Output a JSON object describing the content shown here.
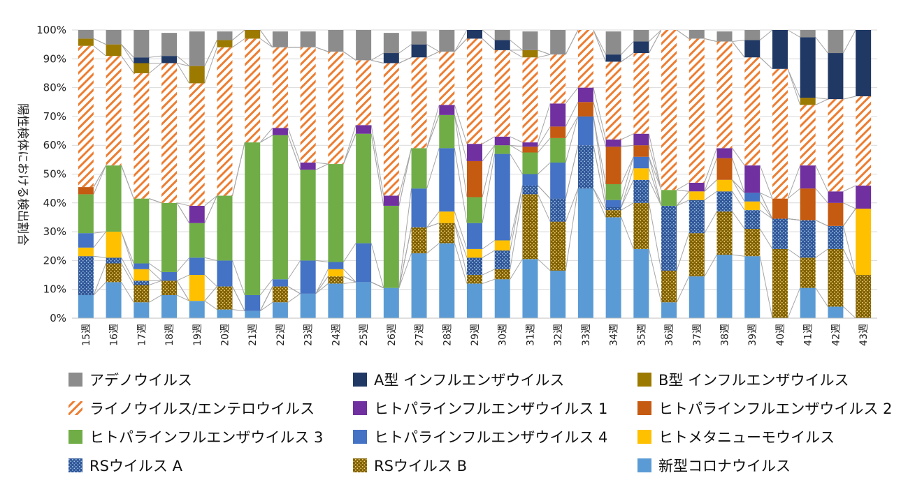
{
  "chart_data": {
    "type": "bar",
    "stacked": true,
    "percent": true,
    "ylabel": "陽性検体における検出割合",
    "ylim": [
      0,
      100
    ],
    "yticks": [
      "0%",
      "10%",
      "20%",
      "30%",
      "40%",
      "50%",
      "60%",
      "70%",
      "80%",
      "90%",
      "100%"
    ],
    "grid": true,
    "legend_position": "bottom",
    "categories": [
      "15週",
      "16週",
      "17週",
      "18週",
      "19週",
      "20週",
      "21週",
      "22週",
      "23週",
      "24週",
      "25週",
      "26週",
      "27週",
      "28週",
      "29週",
      "30週",
      "31週",
      "32週",
      "33週",
      "34週",
      "35週",
      "36週",
      "37週",
      "38週",
      "39週",
      "40週",
      "41週",
      "42週",
      "43週"
    ],
    "series": [
      {
        "name": "新型コロナウイルス",
        "color": "#5b9bd5",
        "pattern": "solid",
        "values": [
          8,
          12.5,
          5.5,
          8,
          6,
          3,
          2.5,
          5.5,
          8.5,
          12,
          12.5,
          10.5,
          22.5,
          26,
          12,
          13.5,
          20.5,
          16.5,
          45,
          35,
          24,
          5.5,
          14.5,
          22,
          21.5,
          0,
          10.5,
          4,
          0
        ]
      },
      {
        "name": "RSウイルス B",
        "color": "#7f6000",
        "pattern": "dots",
        "values": [
          0,
          6.5,
          6,
          5,
          0,
          8,
          0,
          5.5,
          0,
          2.5,
          0,
          0,
          9,
          7,
          3,
          3.5,
          22.5,
          17,
          0,
          2.5,
          16,
          11,
          15,
          15,
          9.5,
          24,
          10.5,
          20,
          15
        ]
      },
      {
        "name": "RSウイルス A",
        "color": "#2f5597",
        "pattern": "dots",
        "values": [
          13.5,
          2,
          1.5,
          0,
          0,
          0,
          0,
          0,
          0,
          0,
          0,
          0,
          0,
          0,
          6,
          6.5,
          3,
          8,
          15,
          1,
          8,
          22.5,
          11.5,
          7,
          6.5,
          10.5,
          13,
          8,
          0
        ]
      },
      {
        "name": "ヒトメタニューモウイルス",
        "color": "#ffc000",
        "pattern": "solid",
        "values": [
          3,
          9,
          4,
          0,
          9,
          0,
          0,
          0,
          0,
          2.5,
          0,
          0,
          0,
          4,
          3,
          3.5,
          0,
          0,
          0,
          0,
          4,
          0,
          3,
          4,
          3,
          0,
          0,
          0,
          23
        ]
      },
      {
        "name": "ヒトパラインフルエンザウイルス 4",
        "color": "#4472c4",
        "pattern": "solid",
        "values": [
          5,
          0,
          2,
          3,
          6,
          9,
          5.5,
          2.5,
          11.5,
          2.5,
          13.5,
          0,
          13.5,
          22,
          9,
          30,
          4,
          12.5,
          10,
          2.5,
          4,
          0,
          0,
          0,
          3,
          0,
          0,
          0,
          0
        ]
      },
      {
        "name": "ヒトパラインフルエンザウイルス 3",
        "color": "#70ad47",
        "pattern": "solid",
        "values": [
          13.5,
          23,
          22.5,
          24,
          12,
          22.5,
          53,
          50,
          31.5,
          34,
          38,
          28.5,
          14,
          11.5,
          9,
          3,
          7.5,
          8.5,
          0,
          5.5,
          0,
          5.5,
          0,
          0,
          0,
          0,
          0,
          0,
          0
        ]
      },
      {
        "name": "ヒトパラインフルエンザウイルス 2",
        "color": "#c55a11",
        "pattern": "solid",
        "values": [
          2.5,
          0,
          0,
          0,
          0,
          0,
          0,
          0,
          0,
          0,
          0,
          0,
          0,
          0,
          12.5,
          0,
          2,
          4,
          5,
          13,
          4,
          0,
          0,
          7.5,
          0,
          7,
          11,
          8,
          0
        ]
      },
      {
        "name": "ヒトパラインフルエンザウイルス 1",
        "color": "#7030a0",
        "pattern": "solid",
        "values": [
          0,
          0,
          0,
          0,
          6,
          0,
          0,
          2.5,
          2.5,
          0,
          3,
          3.5,
          0,
          3.5,
          6,
          3,
          1.5,
          8,
          5,
          2.5,
          4,
          0,
          3,
          3.5,
          9.5,
          0,
          8,
          4,
          8
        ]
      },
      {
        "name": "ライノウイルス/エンテロウイルス",
        "color": "#ed7d31",
        "pattern": "hatch",
        "values": [
          49,
          38,
          43.5,
          48.5,
          42.5,
          51.5,
          36,
          28,
          40,
          39,
          22.5,
          46,
          31.5,
          18.5,
          36.5,
          30,
          29.5,
          17,
          20,
          27,
          28,
          55.5,
          50,
          37,
          37.5,
          45,
          21,
          32,
          31
        ]
      },
      {
        "name": "B型 インフルエンザウイルス",
        "color": "#9c7a00",
        "pattern": "solid",
        "values": [
          2.5,
          4,
          3.5,
          0,
          6,
          2.5,
          3,
          0,
          0,
          0,
          0,
          0,
          0,
          0,
          0,
          0,
          2.5,
          0,
          0,
          0,
          0,
          0,
          0,
          0,
          0,
          0,
          2.5,
          0,
          0
        ]
      },
      {
        "name": "A型 インフルエンザウイルス",
        "color": "#203864",
        "pattern": "solid",
        "values": [
          0,
          0,
          2,
          2.5,
          0,
          0,
          0,
          0,
          0,
          0,
          0,
          3.5,
          4.5,
          0,
          3,
          3.5,
          0,
          0,
          0,
          2.5,
          4,
          0,
          0,
          0,
          6,
          14,
          21,
          16,
          23
        ]
      },
      {
        "name": "アデノウイルス",
        "color": "#8c8c8c",
        "pattern": "solid",
        "values": [
          3,
          5,
          9.5,
          8,
          12,
          3,
          0,
          5.5,
          5.5,
          7.5,
          10.5,
          7,
          4.5,
          7.5,
          3,
          3.5,
          6.5,
          8.5,
          0,
          8,
          4,
          0,
          3,
          3.5,
          3.5,
          0,
          2.5,
          8,
          0
        ]
      }
    ],
    "legend": {
      "columns": 3,
      "order": [
        "アデノウイルス",
        "A型 インフルエンザウイルス",
        "B型 インフルエンザウイルス",
        "ライノウイルス/エンテロウイルス",
        "ヒトパラインフルエンザウイルス 1",
        "ヒトパラインフルエンザウイルス 2",
        "ヒトパラインフルエンザウイルス 3",
        "ヒトパラインフルエンザウイルス 4",
        "ヒトメタニューモウイルス",
        "RSウイルス A",
        "RSウイルス B",
        "新型コロナウイルス"
      ]
    }
  }
}
